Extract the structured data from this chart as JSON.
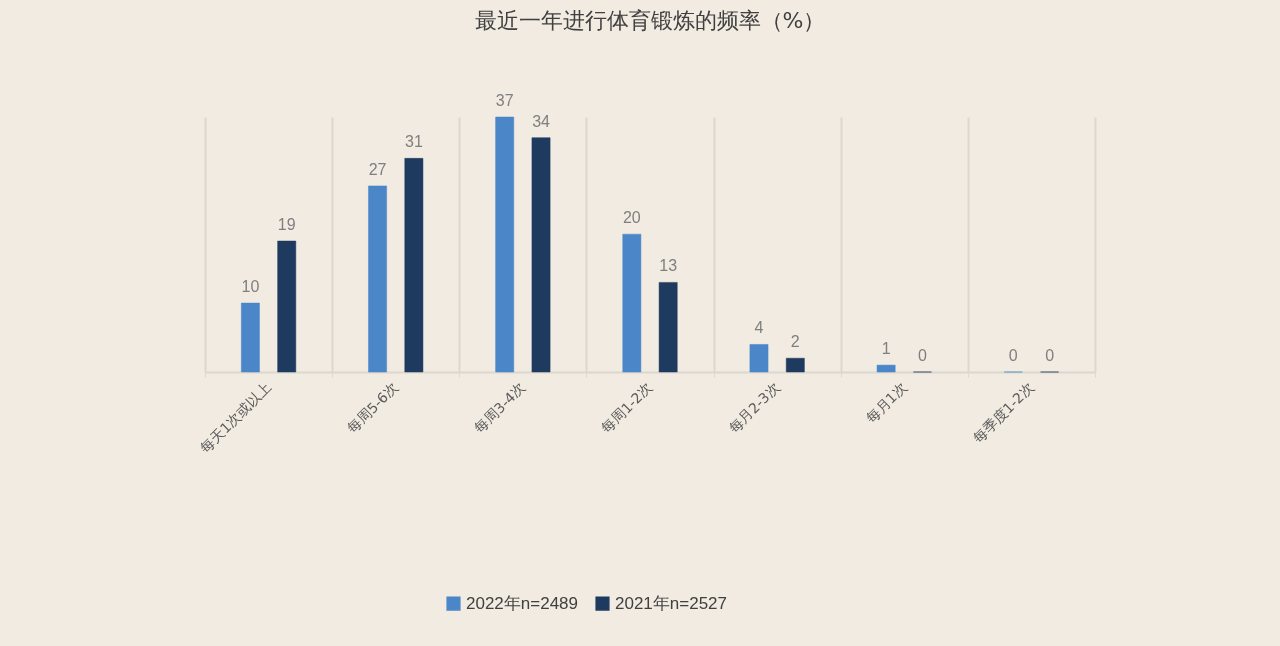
{
  "chart_data": {
    "type": "bar",
    "title": "最近一年进行体育锻炼的频率（%）",
    "categories": [
      "每天1次或以上",
      "每周5-6次",
      "每周3-4次",
      "每周1-2次",
      "每月2-3次",
      "每月1次",
      "每季度1-2次"
    ],
    "series": [
      {
        "name": "2022年n=2489",
        "color": "#4a86c8",
        "values": [
          10,
          27,
          37,
          20,
          4,
          1,
          0
        ]
      },
      {
        "name": "2021年n=2527",
        "color": "#1f3a5f",
        "values": [
          19,
          31,
          34,
          13,
          2,
          0,
          0
        ]
      }
    ],
    "data_labels": true,
    "grid": "x",
    "legend": "bottom"
  }
}
